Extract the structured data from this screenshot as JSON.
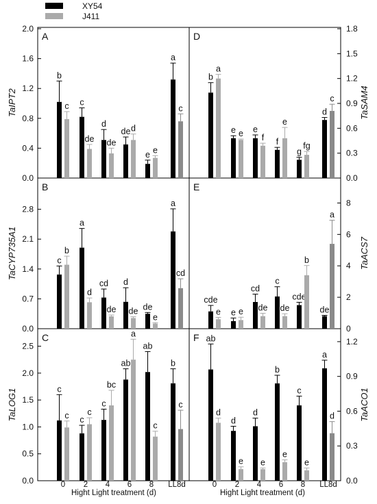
{
  "legend": [
    {
      "name": "XY54",
      "color": "#000000"
    },
    {
      "name": "J411",
      "color": "#aaaaaa"
    }
  ],
  "ll8d_j411_color": "#8a8a8a",
  "x_axis": {
    "categories": [
      "0",
      "2",
      "4",
      "6",
      "8",
      "LL8d"
    ],
    "label": "Hight Light treatment (d)"
  },
  "chart_data": [
    {
      "panel": "A",
      "type": "bar",
      "ylabel": "TaIPT2",
      "axis_side": "left",
      "ylim": [
        0,
        2.0
      ],
      "yticks": [
        "0.0",
        "0.4",
        "0.8",
        "1.2",
        "1.6",
        "2.0"
      ],
      "categories": [
        "0",
        "2",
        "4",
        "6",
        "8",
        "LL8d"
      ],
      "series": [
        {
          "name": "XY54",
          "values": [
            1.02,
            0.82,
            0.51,
            0.45,
            0.19,
            1.32
          ],
          "errors": [
            0.28,
            0.12,
            0.14,
            0.1,
            0.05,
            0.22
          ],
          "labels": [
            "b",
            "c",
            "d",
            "de",
            "e",
            "a"
          ]
        },
        {
          "name": "J411",
          "values": [
            0.79,
            0.39,
            0.33,
            0.51,
            0.27,
            0.76
          ],
          "errors": [
            0.1,
            0.06,
            0.07,
            0.08,
            0.03,
            0.1
          ],
          "labels": [
            "c",
            "de",
            "de",
            "d",
            "e",
            "c"
          ]
        }
      ]
    },
    {
      "panel": "D",
      "type": "bar",
      "ylabel": "TaSAM4",
      "axis_side": "right",
      "ylim": [
        0,
        1.8
      ],
      "yticks": [
        "0.0",
        "0.3",
        "0.6",
        "0.9",
        "1.2",
        "1.5",
        "1.8"
      ],
      "categories": [
        "0",
        "2",
        "4",
        "6",
        "8",
        "LL8d"
      ],
      "series": [
        {
          "name": "XY54",
          "values": [
            1.03,
            0.48,
            0.48,
            0.34,
            0.22,
            0.7
          ],
          "errors": [
            0.12,
            0.03,
            0.04,
            0.03,
            0.03,
            0.03
          ],
          "labels": [
            "b",
            "e",
            "e",
            "f",
            "g",
            "d"
          ]
        },
        {
          "name": "J411",
          "values": [
            1.2,
            0.46,
            0.39,
            0.48,
            0.28,
            0.81
          ],
          "errors": [
            0.05,
            0.01,
            0.03,
            0.13,
            0.04,
            0.08
          ],
          "labels": [
            "a",
            "e",
            "f",
            "e",
            "fg",
            "c"
          ]
        }
      ]
    },
    {
      "panel": "B",
      "type": "bar",
      "ylabel": "TaCYP735A1",
      "axis_side": "left",
      "ylim": [
        0,
        3.5
      ],
      "yticks": [
        "0.0",
        "0.7",
        "1.4",
        "2.1",
        "2.8"
      ],
      "categories": [
        "0",
        "2",
        "4",
        "6",
        "8",
        "LL8d"
      ],
      "series": [
        {
          "name": "XY54",
          "values": [
            1.27,
            1.9,
            0.73,
            0.63,
            0.35,
            2.28
          ],
          "errors": [
            0.2,
            0.45,
            0.2,
            0.33,
            0.03,
            0.53
          ],
          "labels": [
            "c",
            "a",
            "cd",
            "d",
            "de",
            "a"
          ]
        },
        {
          "name": "J411",
          "values": [
            1.5,
            0.62,
            0.29,
            0.25,
            0.12,
            0.95
          ],
          "errors": [
            0.2,
            0.1,
            0.03,
            0.03,
            0.02,
            0.22
          ],
          "labels": [
            "b",
            "d",
            "de",
            "de",
            "e",
            "cd"
          ]
        }
      ]
    },
    {
      "panel": "E",
      "type": "bar",
      "ylabel": "TaACS7",
      "axis_side": "right",
      "ylim": [
        0,
        9.5
      ],
      "yticks": [
        "0",
        "2",
        "4",
        "6",
        "8"
      ],
      "categories": [
        "0",
        "2",
        "4",
        "6",
        "8",
        "LL8d"
      ],
      "series": [
        {
          "name": "XY54",
          "values": [
            1.1,
            0.48,
            1.7,
            2.05,
            1.5,
            0.8
          ],
          "errors": [
            0.38,
            0.2,
            0.5,
            0.62,
            0.18,
            0.05
          ],
          "labels": [
            "cde",
            "e",
            "cd",
            "c",
            "cde",
            "de"
          ]
        },
        {
          "name": "J411",
          "values": [
            0.6,
            0.55,
            0.8,
            0.8,
            3.4,
            5.4
          ],
          "errors": [
            0.12,
            0.18,
            0.18,
            0.15,
            0.62,
            1.5
          ],
          "labels": [
            "e",
            "e",
            "de",
            "de",
            "b",
            "a"
          ]
        }
      ]
    },
    {
      "panel": "C",
      "type": "bar",
      "ylabel": "TaLOG1",
      "axis_side": "left",
      "ylim": [
        0,
        2.8
      ],
      "yticks": [
        "0.0",
        "0.5",
        "1.0",
        "1.5",
        "2.0",
        "2.5"
      ],
      "categories": [
        "0",
        "2",
        "4",
        "6",
        "8",
        "LL8d"
      ],
      "series": [
        {
          "name": "XY54",
          "values": [
            1.12,
            0.88,
            1.13,
            1.88,
            2.02,
            1.81
          ],
          "errors": [
            0.48,
            0.15,
            0.2,
            0.2,
            0.38,
            0.27
          ],
          "labels": [
            "c",
            "c",
            "c",
            "ab",
            "ab",
            "b"
          ]
        },
        {
          "name": "J411",
          "values": [
            0.99,
            1.05,
            1.4,
            2.25,
            0.82,
            0.96
          ],
          "errors": [
            0.12,
            0.12,
            0.28,
            0.38,
            0.1,
            0.35
          ],
          "labels": [
            "c",
            "c",
            "bc",
            "a",
            "c",
            "c"
          ]
        }
      ]
    },
    {
      "panel": "F",
      "type": "bar",
      "ylabel": "TaACO1",
      "axis_side": "right",
      "ylim": [
        0,
        1.3
      ],
      "yticks": [
        "0.0",
        "0.3",
        "0.6",
        "0.9",
        "1.2"
      ],
      "categories": [
        "0",
        "2",
        "4",
        "6",
        "8",
        "LL8d"
      ],
      "series": [
        {
          "name": "XY54",
          "values": [
            0.96,
            0.43,
            0.47,
            0.84,
            0.65,
            0.97
          ],
          "errors": [
            0.22,
            0.04,
            0.07,
            0.07,
            0.08,
            0.07
          ],
          "labels": [
            "ab",
            "d",
            "d",
            "b",
            "c",
            "a"
          ]
        },
        {
          "name": "J411",
          "values": [
            0.5,
            0.1,
            0.1,
            0.16,
            0.09,
            0.41
          ],
          "errors": [
            0.04,
            0.02,
            0.01,
            0.02,
            0.02,
            0.1
          ],
          "labels": [
            "d",
            "e",
            "e",
            "e",
            "e",
            "d"
          ]
        }
      ]
    }
  ]
}
